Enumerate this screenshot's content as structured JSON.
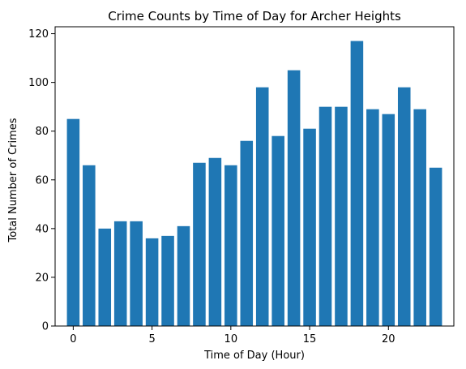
{
  "chart_data": {
    "type": "bar",
    "title": "Crime Counts by Time of Day for Archer Heights",
    "xlabel": "Time of Day (Hour)",
    "ylabel": "Total Number of Crimes",
    "x": [
      0,
      1,
      2,
      3,
      4,
      5,
      6,
      7,
      8,
      9,
      10,
      11,
      12,
      13,
      14,
      15,
      16,
      17,
      18,
      19,
      20,
      21,
      22,
      23
    ],
    "values": [
      85,
      66,
      40,
      43,
      43,
      36,
      37,
      41,
      67,
      69,
      66,
      76,
      98,
      78,
      105,
      81,
      90,
      90,
      117,
      89,
      87,
      98,
      89,
      65
    ],
    "xlim": [
      -1.15,
      24.15
    ],
    "ylim": [
      0,
      122.85
    ],
    "xticks": [
      0,
      5,
      10,
      15,
      20
    ],
    "yticks": [
      0,
      20,
      40,
      60,
      80,
      100,
      120
    ],
    "bar_color": "#1f77b4",
    "grid": false,
    "legend": "none"
  }
}
